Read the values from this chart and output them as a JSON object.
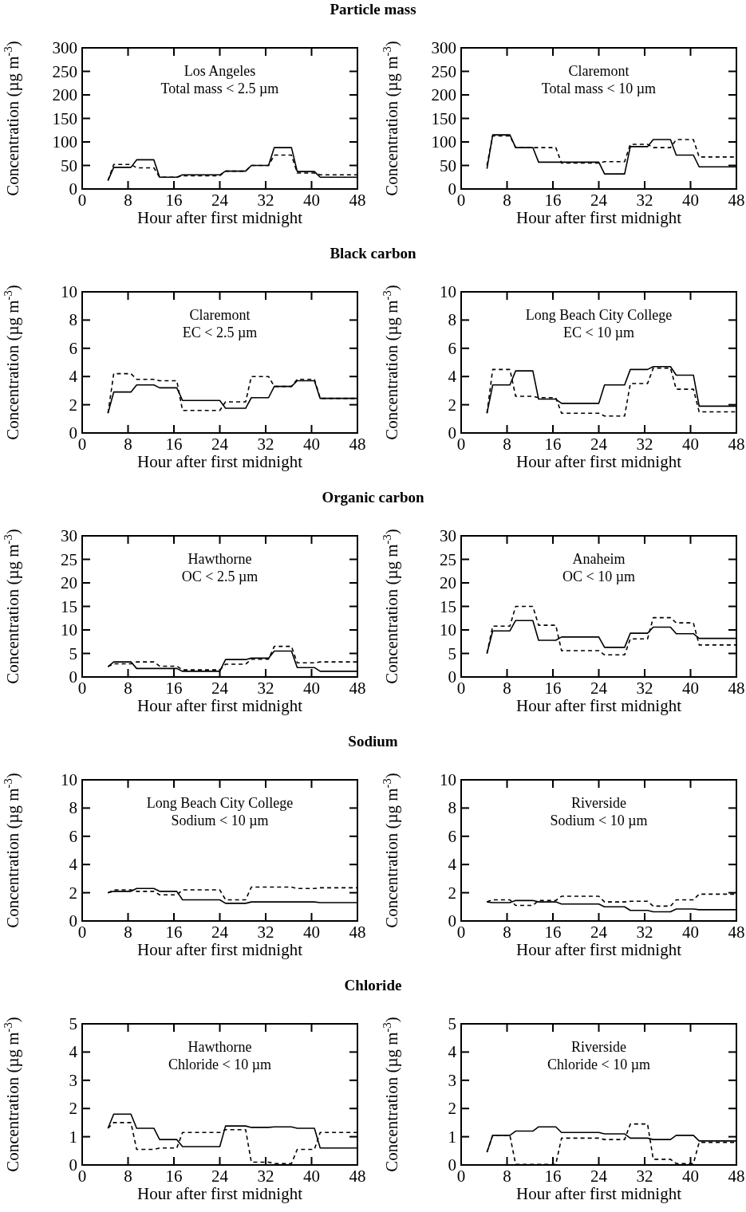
{
  "chart_data": [
    {
      "type": "line",
      "title": "Particle mass",
      "xlabel": "Hour after first midnight",
      "ylabel": "Concentration  (µg m$^{-3}$)",
      "annotations": [
        "Los Angeles",
        "Total mass < 2.5 µm"
      ],
      "x": [
        4.5,
        5.5,
        8.5,
        9.5,
        12.5,
        13.5,
        16.5,
        17.5,
        24,
        25,
        28.5,
        29.5,
        32.5,
        33.5,
        36.5,
        37.5,
        40.5,
        41.5,
        48
      ],
      "xlim": [
        0,
        48
      ],
      "xticks": [
        0,
        8,
        16,
        24,
        32,
        40,
        48
      ],
      "ylim": [
        0,
        300
      ],
      "yticks": [
        0,
        50,
        100,
        150,
        200,
        250,
        300
      ],
      "series": [
        {
          "color": "#000000",
          "line_style": "solid",
          "values": [
            18,
            46,
            46,
            62,
            62,
            25,
            25,
            30,
            30,
            38,
            38,
            50,
            50,
            88,
            88,
            37,
            37,
            25,
            25
          ]
        },
        {
          "color": "#000000",
          "line_style": "dashed",
          "values": [
            18,
            52,
            52,
            45,
            45,
            25,
            25,
            28,
            28,
            38,
            38,
            50,
            50,
            72,
            72,
            34,
            34,
            30,
            30
          ]
        }
      ]
    },
    {
      "type": "line",
      "xlabel": "Hour after first midnight",
      "ylabel": "Concentration  (µg m$^{-3}$)",
      "annotations": [
        "Claremont",
        "Total mass < 10 µm"
      ],
      "x": [
        4.5,
        5.5,
        8.5,
        9.5,
        12.5,
        13.5,
        16.5,
        17.5,
        24,
        25,
        28.5,
        29.5,
        32.5,
        33.5,
        36.5,
        37.5,
        40.5,
        41.5,
        48
      ],
      "xlim": [
        0,
        48
      ],
      "xticks": [
        0,
        8,
        16,
        24,
        32,
        40,
        48
      ],
      "ylim": [
        0,
        300
      ],
      "yticks": [
        0,
        50,
        100,
        150,
        200,
        250,
        300
      ],
      "series": [
        {
          "color": "#000000",
          "line_style": "solid",
          "values": [
            43,
            115,
            115,
            88,
            88,
            57,
            57,
            57,
            57,
            32,
            32,
            90,
            90,
            105,
            105,
            72,
            72,
            47,
            47
          ]
        },
        {
          "color": "#000000",
          "line_style": "dashed",
          "values": [
            50,
            113,
            113,
            88,
            88,
            88,
            88,
            55,
            55,
            58,
            58,
            95,
            95,
            88,
            88,
            105,
            105,
            68,
            68
          ]
        }
      ]
    },
    {
      "type": "line",
      "title": "Black carbon",
      "xlabel": "Hour after first midnight",
      "ylabel": "Concentration  (µg m$^{-3}$)",
      "annotations": [
        "Claremont",
        "EC < 2.5 µm"
      ],
      "x": [
        4.5,
        5.5,
        8.5,
        9.5,
        12.5,
        13.5,
        16.5,
        17.5,
        24,
        25,
        28.5,
        29.5,
        32.5,
        33.5,
        36.5,
        37.5,
        40.5,
        41.5,
        48
      ],
      "xlim": [
        0,
        48
      ],
      "xticks": [
        0,
        8,
        16,
        24,
        32,
        40,
        48
      ],
      "ylim": [
        0,
        10
      ],
      "yticks": [
        0,
        2,
        4,
        6,
        8,
        10
      ],
      "series": [
        {
          "color": "#000000",
          "line_style": "solid",
          "values": [
            1.4,
            2.9,
            2.9,
            3.4,
            3.4,
            3.2,
            3.2,
            2.3,
            2.3,
            1.75,
            1.75,
            2.5,
            2.5,
            3.3,
            3.3,
            3.7,
            3.7,
            2.45,
            2.45
          ]
        },
        {
          "color": "#000000",
          "line_style": "dashed",
          "values": [
            1.4,
            4.2,
            4.2,
            3.8,
            3.8,
            3.7,
            3.7,
            1.6,
            1.6,
            2.2,
            2.2,
            4.0,
            4.0,
            3.3,
            3.3,
            3.8,
            3.8,
            2.45,
            2.45
          ]
        }
      ]
    },
    {
      "type": "line",
      "xlabel": "Hour after first midnight",
      "ylabel": "Concentration  (µg m$^{-3}$)",
      "annotations": [
        "Long Beach City College",
        "EC < 10 µm"
      ],
      "x": [
        4.5,
        5.5,
        8.5,
        9.5,
        12.5,
        13.5,
        16.5,
        17.5,
        24,
        25,
        28.5,
        29.5,
        32.5,
        33.5,
        36.5,
        37.5,
        40.5,
        41.5,
        48
      ],
      "xlim": [
        0,
        48
      ],
      "xticks": [
        0,
        8,
        16,
        24,
        32,
        40,
        48
      ],
      "ylim": [
        0,
        10
      ],
      "yticks": [
        0,
        2,
        4,
        6,
        8,
        10
      ],
      "series": [
        {
          "color": "#000000",
          "line_style": "solid",
          "values": [
            1.4,
            3.4,
            3.4,
            4.4,
            4.4,
            2.4,
            2.4,
            2.1,
            2.1,
            3.4,
            3.4,
            4.5,
            4.5,
            4.7,
            4.7,
            4.1,
            4.1,
            1.9,
            1.9
          ]
        },
        {
          "color": "#000000",
          "line_style": "dashed",
          "values": [
            1.4,
            4.5,
            4.5,
            2.6,
            2.6,
            2.5,
            2.5,
            1.4,
            1.4,
            1.2,
            1.2,
            3.5,
            3.5,
            4.6,
            4.6,
            3.1,
            3.1,
            1.5,
            1.5
          ]
        }
      ]
    },
    {
      "type": "line",
      "title": "Organic carbon",
      "xlabel": "Hour after first midnight",
      "ylabel": "Concentration  (µg m$^{-3}$)",
      "annotations": [
        "Hawthorne",
        "OC < 2.5 µm"
      ],
      "x": [
        4.5,
        5.5,
        8.5,
        9.5,
        12.5,
        13.5,
        16.5,
        17.5,
        24,
        25,
        28.5,
        29.5,
        32.5,
        33.5,
        36.5,
        37.5,
        40.5,
        41.5,
        48
      ],
      "xlim": [
        0,
        48
      ],
      "xticks": [
        0,
        8,
        16,
        24,
        32,
        40,
        48
      ],
      "ylim": [
        0,
        30
      ],
      "yticks": [
        0,
        5,
        10,
        15,
        20,
        25,
        30
      ],
      "series": [
        {
          "color": "#000000",
          "line_style": "solid",
          "values": [
            2.2,
            3.2,
            3.2,
            1.8,
            1.8,
            1.8,
            1.8,
            1.2,
            1.2,
            3.7,
            3.7,
            4.0,
            4.0,
            5.5,
            5.5,
            2.0,
            2.0,
            1.2,
            1.2
          ]
        },
        {
          "color": "#000000",
          "line_style": "dashed",
          "values": [
            2.2,
            2.8,
            2.8,
            3.2,
            3.2,
            2.3,
            2.3,
            1.5,
            1.5,
            2.7,
            2.7,
            3.8,
            3.8,
            6.5,
            6.5,
            3.0,
            3.0,
            3.2,
            3.2
          ]
        }
      ]
    },
    {
      "type": "line",
      "xlabel": "Hour after first midnight",
      "ylabel": "Concentration  (µg m$^{-3}$)",
      "annotations": [
        "Anaheim",
        "OC < 10 µm"
      ],
      "x": [
        4.5,
        5.5,
        8.5,
        9.5,
        12.5,
        13.5,
        16.5,
        17.5,
        24,
        25,
        28.5,
        29.5,
        32.5,
        33.5,
        36.5,
        37.5,
        40.5,
        41.5,
        48
      ],
      "xlim": [
        0,
        48
      ],
      "xticks": [
        0,
        8,
        16,
        24,
        32,
        40,
        48
      ],
      "ylim": [
        0,
        30
      ],
      "yticks": [
        0,
        5,
        10,
        15,
        20,
        25,
        30
      ],
      "series": [
        {
          "color": "#000000",
          "line_style": "solid",
          "values": [
            5,
            9.8,
            9.8,
            12,
            12,
            7.8,
            7.8,
            8.5,
            8.5,
            6.3,
            6.3,
            9.3,
            9.3,
            10.6,
            10.6,
            9.2,
            9.2,
            8.2,
            8.2
          ]
        },
        {
          "color": "#000000",
          "line_style": "dashed",
          "values": [
            5,
            10.8,
            10.8,
            15,
            15,
            11,
            11,
            5.6,
            5.6,
            4.7,
            4.7,
            8.1,
            8.1,
            12.6,
            12.6,
            11.5,
            11.5,
            6.8,
            6.8
          ]
        }
      ]
    },
    {
      "type": "line",
      "title": "Sodium",
      "xlabel": "Hour after first midnight",
      "ylabel": "Concentration  (µg m$^{-3}$)",
      "annotations": [
        "Long Beach City College",
        "Sodium < 10 µm"
      ],
      "x": [
        4.5,
        5.5,
        8.5,
        9.5,
        12.5,
        13.5,
        16.5,
        17.5,
        24,
        25,
        28.5,
        29.5,
        32.5,
        33.5,
        36.5,
        37.5,
        40.5,
        41.5,
        48
      ],
      "xlim": [
        0,
        48
      ],
      "xticks": [
        0,
        8,
        16,
        24,
        32,
        40,
        48
      ],
      "ylim": [
        0,
        10
      ],
      "yticks": [
        0,
        2,
        4,
        6,
        8,
        10
      ],
      "series": [
        {
          "color": "#000000",
          "line_style": "solid",
          "values": [
            2.0,
            2.1,
            2.1,
            2.3,
            2.3,
            2.1,
            2.1,
            1.5,
            1.5,
            1.25,
            1.25,
            1.35,
            1.35,
            1.35,
            1.35,
            1.35,
            1.35,
            1.3,
            1.3
          ]
        },
        {
          "color": "#000000",
          "line_style": "dashed",
          "values": [
            2.0,
            2.2,
            2.2,
            2.1,
            2.1,
            1.85,
            1.85,
            2.2,
            2.2,
            1.5,
            1.5,
            2.4,
            2.4,
            2.4,
            2.4,
            2.3,
            2.3,
            2.35,
            2.35
          ]
        }
      ]
    },
    {
      "type": "line",
      "xlabel": "Hour after first midnight",
      "ylabel": "Concentration  (µg m$^{-3}$)",
      "annotations": [
        "Riverside",
        "Sodium < 10 µm"
      ],
      "x": [
        4.5,
        5.5,
        8.5,
        9.5,
        12.5,
        13.5,
        16.5,
        17.5,
        24,
        25,
        28.5,
        29.5,
        32.5,
        33.5,
        36.5,
        37.5,
        40.5,
        41.5,
        48
      ],
      "xlim": [
        0,
        48
      ],
      "xticks": [
        0,
        8,
        16,
        24,
        32,
        40,
        48
      ],
      "ylim": [
        0,
        10
      ],
      "yticks": [
        0,
        2,
        4,
        6,
        8,
        10
      ],
      "series": [
        {
          "color": "#000000",
          "line_style": "solid",
          "values": [
            1.35,
            1.3,
            1.3,
            1.45,
            1.45,
            1.35,
            1.35,
            1.2,
            1.2,
            1.0,
            1.0,
            0.75,
            0.75,
            0.65,
            0.65,
            0.85,
            0.85,
            0.8,
            0.8
          ]
        },
        {
          "color": "#000000",
          "line_style": "dashed",
          "values": [
            1.35,
            1.5,
            1.5,
            1.1,
            1.1,
            1.45,
            1.45,
            1.75,
            1.75,
            1.35,
            1.35,
            1.4,
            1.4,
            1.05,
            1.05,
            1.5,
            1.5,
            1.9,
            1.9
          ]
        }
      ]
    },
    {
      "type": "line",
      "title": "Chloride",
      "xlabel": "Hour after first midnight",
      "ylabel": "Concentration  (µg m$^{-3}$)",
      "annotations": [
        "Hawthorne",
        "Chloride < 10 µm"
      ],
      "x": [
        4.5,
        5.5,
        8.5,
        9.5,
        12.5,
        13.5,
        16.5,
        17.5,
        24,
        25,
        28.5,
        29.5,
        32.5,
        33.5,
        36.5,
        37.5,
        40.5,
        41.5,
        48
      ],
      "xlim": [
        0,
        48
      ],
      "xticks": [
        0,
        8,
        16,
        24,
        32,
        40,
        48
      ],
      "ylim": [
        0,
        5
      ],
      "yticks": [
        0,
        1,
        2,
        3,
        4,
        5
      ],
      "series": [
        {
          "color": "#000000",
          "line_style": "solid",
          "values": [
            1.3,
            1.8,
            1.8,
            1.3,
            1.3,
            0.9,
            0.9,
            0.65,
            0.65,
            1.38,
            1.38,
            1.33,
            1.33,
            1.35,
            1.35,
            1.3,
            1.3,
            0.6,
            0.6
          ]
        },
        {
          "color": "#000000",
          "line_style": "dashed",
          "values": [
            1.3,
            1.5,
            1.5,
            0.55,
            0.55,
            0.6,
            0.6,
            1.15,
            1.15,
            1.25,
            1.25,
            0.1,
            0.1,
            0.05,
            0.05,
            0.55,
            0.55,
            1.15,
            1.15
          ]
        }
      ]
    },
    {
      "type": "line",
      "xlabel": "Hour after first midnight",
      "ylabel": "Concentration  (µg m$^{-3}$)",
      "annotations": [
        "Riverside",
        "Chloride < 10 µm"
      ],
      "x": [
        4.5,
        5.5,
        8.5,
        9.5,
        12.5,
        13.5,
        16.5,
        17.5,
        24,
        25,
        28.5,
        29.5,
        32.5,
        33.5,
        36.5,
        37.5,
        40.5,
        41.5,
        48
      ],
      "xlim": [
        0,
        48
      ],
      "xticks": [
        0,
        8,
        16,
        24,
        32,
        40,
        48
      ],
      "ylim": [
        0,
        5
      ],
      "yticks": [
        0,
        1,
        2,
        3,
        4,
        5
      ],
      "series": [
        {
          "color": "#000000",
          "line_style": "solid",
          "values": [
            0.45,
            1.05,
            1.05,
            1.2,
            1.2,
            1.35,
            1.35,
            1.15,
            1.15,
            1.1,
            1.1,
            0.95,
            0.95,
            0.9,
            0.9,
            1.05,
            1.05,
            0.85,
            0.85
          ]
        },
        {
          "color": "#000000",
          "line_style": "dashed",
          "values": [
            0.45,
            1.05,
            1.05,
            0.02,
            0.02,
            0.02,
            0.02,
            0.95,
            0.95,
            0.9,
            0.9,
            1.45,
            1.45,
            0.2,
            0.2,
            0.05,
            0.05,
            0.8,
            0.8
          ]
        }
      ]
    }
  ]
}
